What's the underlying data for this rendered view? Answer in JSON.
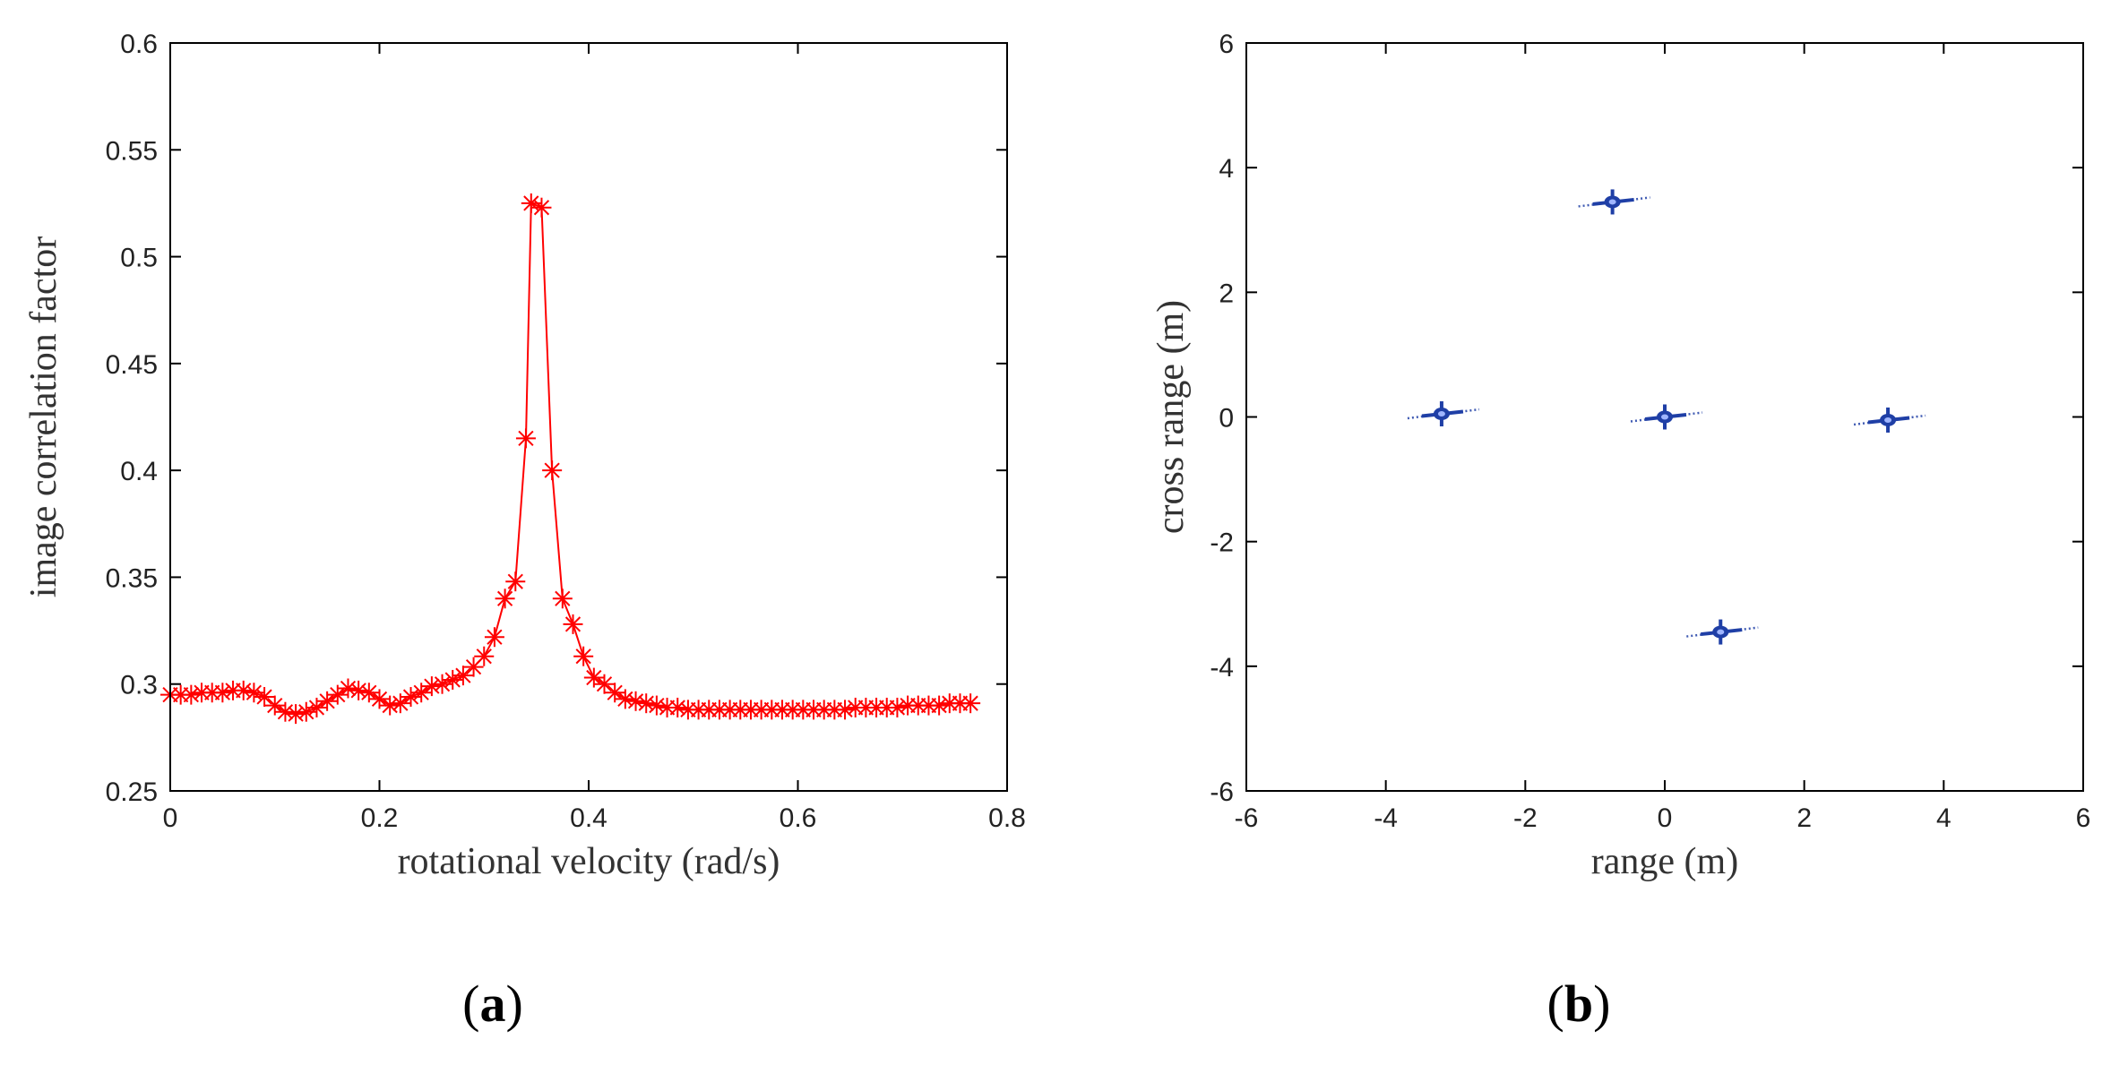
{
  "chart_data": [
    {
      "type": "line",
      "panel": "a",
      "caption": {
        "open": "(",
        "letter": "a",
        "close": ")"
      },
      "xlabel": "rotational velocity (rad/s)",
      "ylabel": "image correlation factor",
      "xlim": [
        0,
        0.8
      ],
      "ylim": [
        0.25,
        0.6
      ],
      "xticks": [
        0,
        0.2,
        0.4,
        0.6,
        0.8
      ],
      "xtick_labels": [
        "0",
        "0.2",
        "0.4",
        "0.6",
        "0.8"
      ],
      "yticks": [
        0.25,
        0.3,
        0.35,
        0.4,
        0.45,
        0.5,
        0.55,
        0.6
      ],
      "ytick_labels": [
        "0.25",
        "0.3",
        "0.35",
        "0.4",
        "0.45",
        "0.5",
        "0.55",
        "0.6"
      ],
      "series": [
        {
          "name": "image correlation factor",
          "color": "#ff0000",
          "marker": "asterisk",
          "x": [
            0.0,
            0.01,
            0.02,
            0.03,
            0.04,
            0.05,
            0.06,
            0.07,
            0.08,
            0.09,
            0.1,
            0.11,
            0.12,
            0.13,
            0.14,
            0.15,
            0.16,
            0.17,
            0.18,
            0.19,
            0.2,
            0.21,
            0.22,
            0.23,
            0.24,
            0.25,
            0.26,
            0.27,
            0.28,
            0.29,
            0.3,
            0.31,
            0.32,
            0.33,
            0.34,
            0.345,
            0.355,
            0.365,
            0.375,
            0.385,
            0.395,
            0.405,
            0.415,
            0.425,
            0.435,
            0.445,
            0.455,
            0.465,
            0.475,
            0.485,
            0.495,
            0.505,
            0.515,
            0.525,
            0.535,
            0.545,
            0.555,
            0.565,
            0.575,
            0.585,
            0.595,
            0.605,
            0.615,
            0.625,
            0.635,
            0.645,
            0.655,
            0.665,
            0.675,
            0.685,
            0.695,
            0.705,
            0.715,
            0.725,
            0.735,
            0.745,
            0.755,
            0.765
          ],
          "y": [
            0.295,
            0.295,
            0.295,
            0.296,
            0.296,
            0.296,
            0.297,
            0.297,
            0.296,
            0.294,
            0.29,
            0.287,
            0.286,
            0.287,
            0.289,
            0.292,
            0.295,
            0.298,
            0.297,
            0.296,
            0.293,
            0.29,
            0.291,
            0.294,
            0.296,
            0.299,
            0.3,
            0.302,
            0.304,
            0.308,
            0.313,
            0.322,
            0.34,
            0.348,
            0.415,
            0.525,
            0.523,
            0.4,
            0.34,
            0.328,
            0.313,
            0.303,
            0.3,
            0.296,
            0.293,
            0.292,
            0.291,
            0.29,
            0.289,
            0.289,
            0.288,
            0.288,
            0.288,
            0.288,
            0.288,
            0.288,
            0.288,
            0.288,
            0.288,
            0.288,
            0.288,
            0.288,
            0.288,
            0.288,
            0.288,
            0.288,
            0.289,
            0.289,
            0.289,
            0.289,
            0.289,
            0.29,
            0.29,
            0.29,
            0.29,
            0.291,
            0.291,
            0.291
          ]
        }
      ]
    },
    {
      "type": "scatter",
      "panel": "b",
      "caption": {
        "open": "(",
        "letter": "b",
        "close": ")"
      },
      "xlabel": "range (m)",
      "ylabel": "cross range (m)",
      "xlim": [
        -6,
        6
      ],
      "ylim": [
        -6,
        6
      ],
      "xticks": [
        -6,
        -4,
        -2,
        0,
        2,
        4,
        6
      ],
      "xtick_labels": [
        "-6",
        "-4",
        "-2",
        "0",
        "2",
        "4",
        "6"
      ],
      "yticks": [
        -6,
        -4,
        -2,
        0,
        2,
        4,
        6
      ],
      "ytick_labels": [
        "-6",
        "-4",
        "-2",
        "0",
        "2",
        "4",
        "6"
      ],
      "series": [
        {
          "name": "scatterers",
          "color": "#1f3fa6",
          "points": [
            {
              "x": -0.75,
              "y": 3.45
            },
            {
              "x": -3.2,
              "y": 0.05
            },
            {
              "x": 0.0,
              "y": 0.0
            },
            {
              "x": 3.2,
              "y": -0.05
            },
            {
              "x": 0.8,
              "y": -3.45
            }
          ]
        }
      ]
    }
  ]
}
